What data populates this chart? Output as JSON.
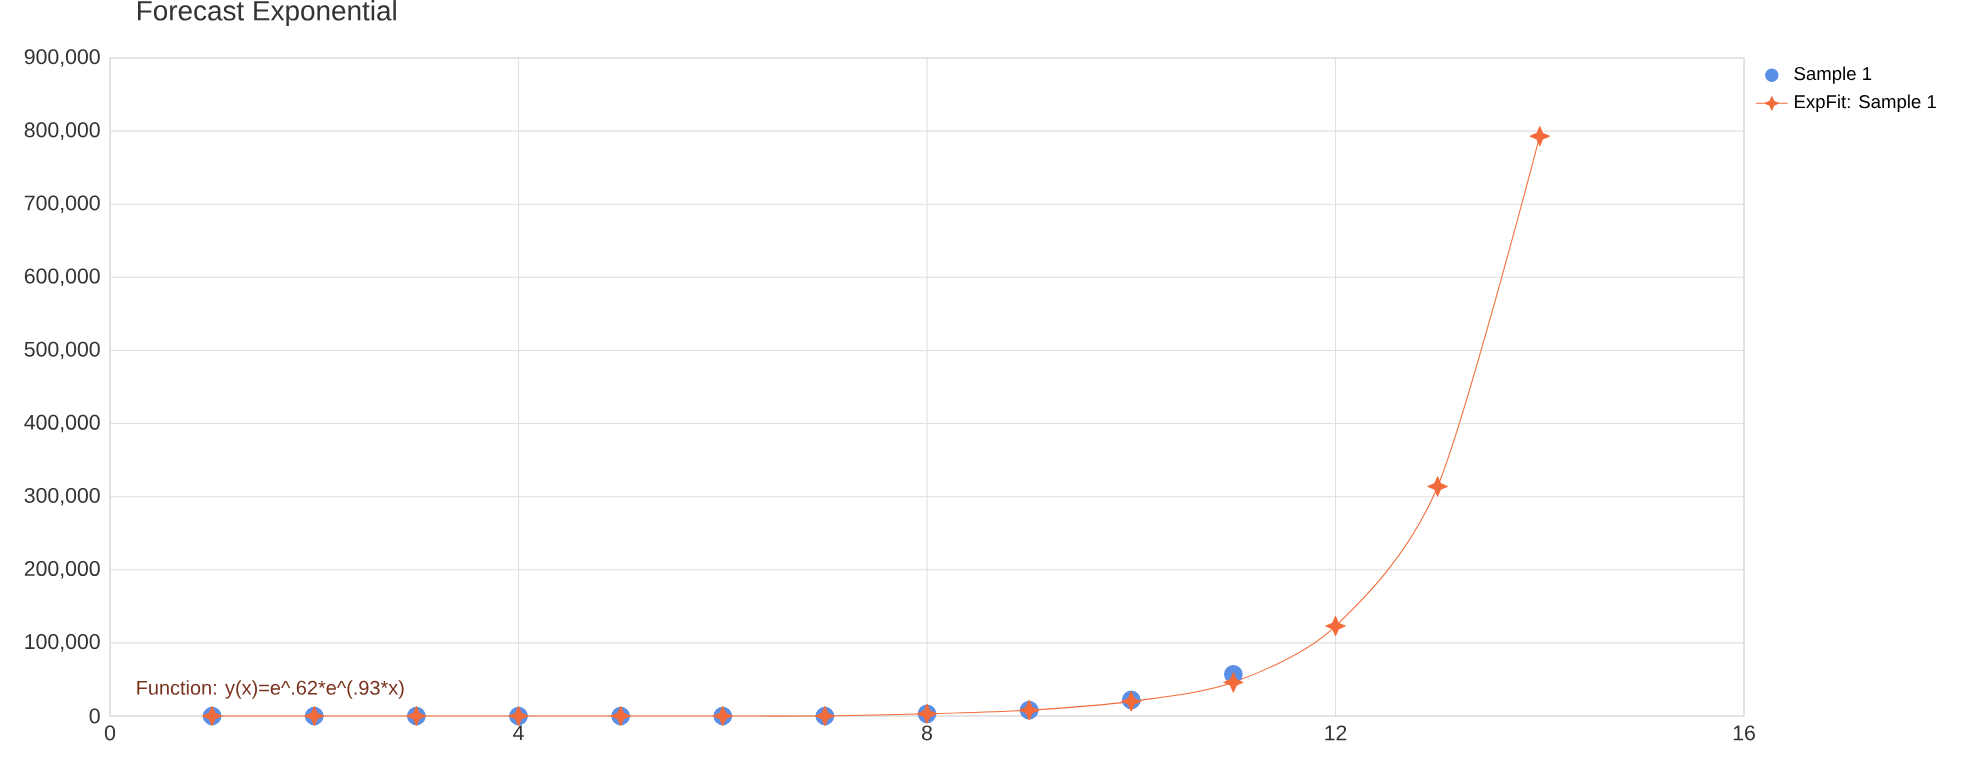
{
  "chart_data": {
    "type": "scatter",
    "title": "Forecast Exponential",
    "xlim": [
      0,
      16
    ],
    "xticks": [
      0,
      4,
      8,
      12,
      16
    ],
    "ylim": [
      0,
      900000
    ],
    "yticks": [
      0,
      {
        "value": 100000,
        "label": "100,000"
      },
      {
        "value": 200000,
        "label": "200,000"
      },
      {
        "value": 300000,
        "label": "300,000"
      },
      {
        "value": 400000,
        "label": "400,000"
      },
      {
        "value": 500000,
        "label": "500,000"
      },
      {
        "value": 600000,
        "label": "600,000"
      },
      {
        "value": 700000,
        "label": "700,000"
      },
      {
        "value": 800000,
        "label": "800,000"
      },
      {
        "value": 900000,
        "label": "900,000"
      }
    ],
    "grid": true,
    "legend": "top right",
    "series": [
      {
        "name": "Sample 1",
        "marker": "circle",
        "color": "#5b8fe6",
        "x": [
          1,
          2,
          3,
          4,
          5,
          6,
          7,
          8,
          9,
          10,
          11
        ],
        "values": [
          0,
          0,
          0,
          0,
          0,
          0,
          0,
          3000,
          8000,
          22000,
          57000
        ]
      },
      {
        "name": "ExpFit: Sample 1",
        "type": "line",
        "marker": "star",
        "color": "#f26b3a",
        "x": [
          1,
          2,
          3,
          4,
          5,
          6,
          7,
          8,
          9,
          10,
          11,
          12,
          13,
          14
        ],
        "values": [
          0,
          0,
          0,
          0,
          0,
          0,
          0,
          3000,
          8000,
          20000,
          46000,
          123000,
          314000,
          793000
        ]
      }
    ],
    "annotations": [
      "Function: y(x)=e^.62*e^(.93*x)"
    ]
  }
}
